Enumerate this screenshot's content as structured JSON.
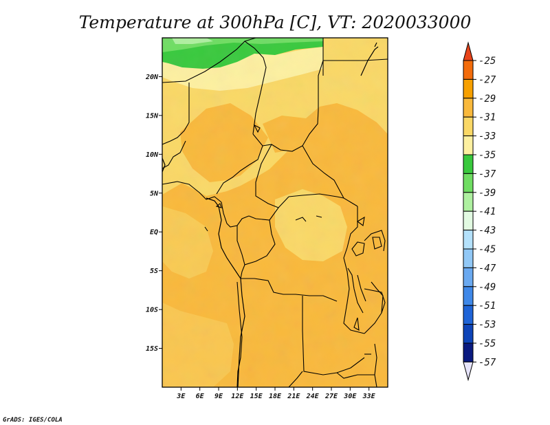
{
  "title": "Temperature at 300hPa [C], VT: 2020033000",
  "credit": "GrADS: IGES/COLA",
  "map": {
    "lon_range": [
      0,
      36
    ],
    "lat_range": [
      -20,
      25
    ],
    "lat_ticks": [
      {
        "value": 20,
        "label": "20N"
      },
      {
        "value": 15,
        "label": "15N"
      },
      {
        "value": 10,
        "label": "10N"
      },
      {
        "value": 5,
        "label": "5N"
      },
      {
        "value": 0,
        "label": "EQ"
      },
      {
        "value": -5,
        "label": "5S"
      },
      {
        "value": -10,
        "label": "10S"
      },
      {
        "value": -15,
        "label": "15S"
      }
    ],
    "lon_ticks": [
      {
        "value": 3,
        "label": "3E"
      },
      {
        "value": 6,
        "label": "6E"
      },
      {
        "value": 9,
        "label": "9E"
      },
      {
        "value": 12,
        "label": "12E"
      },
      {
        "value": 15,
        "label": "15E"
      },
      {
        "value": 18,
        "label": "18E"
      },
      {
        "value": 21,
        "label": "21E"
      },
      {
        "value": 24,
        "label": "24E"
      },
      {
        "value": 27,
        "label": "27E"
      },
      {
        "value": 30,
        "label": "30E"
      },
      {
        "value": 33,
        "label": "33E"
      }
    ]
  },
  "colorbar": {
    "levels": [
      "-25",
      "-27",
      "-29",
      "-31",
      "-33",
      "-35",
      "-37",
      "-39",
      "-41",
      "-43",
      "-45",
      "-47",
      "-49",
      "-51",
      "-53",
      "-55",
      "-57"
    ],
    "colors": [
      "#e8441a",
      "#f36c0b",
      "#f7a000",
      "#f9b93c",
      "#fad866",
      "#fdf0a0",
      "#39c93d",
      "#6fdd62",
      "#aef0a0",
      "#e2fae2",
      "#b4e1fb",
      "#91c8f6",
      "#6aa9f0",
      "#3f88e8",
      "#1f64d7",
      "#0e44b8",
      "#0a1a80",
      "#e6e4fa"
    ]
  }
}
